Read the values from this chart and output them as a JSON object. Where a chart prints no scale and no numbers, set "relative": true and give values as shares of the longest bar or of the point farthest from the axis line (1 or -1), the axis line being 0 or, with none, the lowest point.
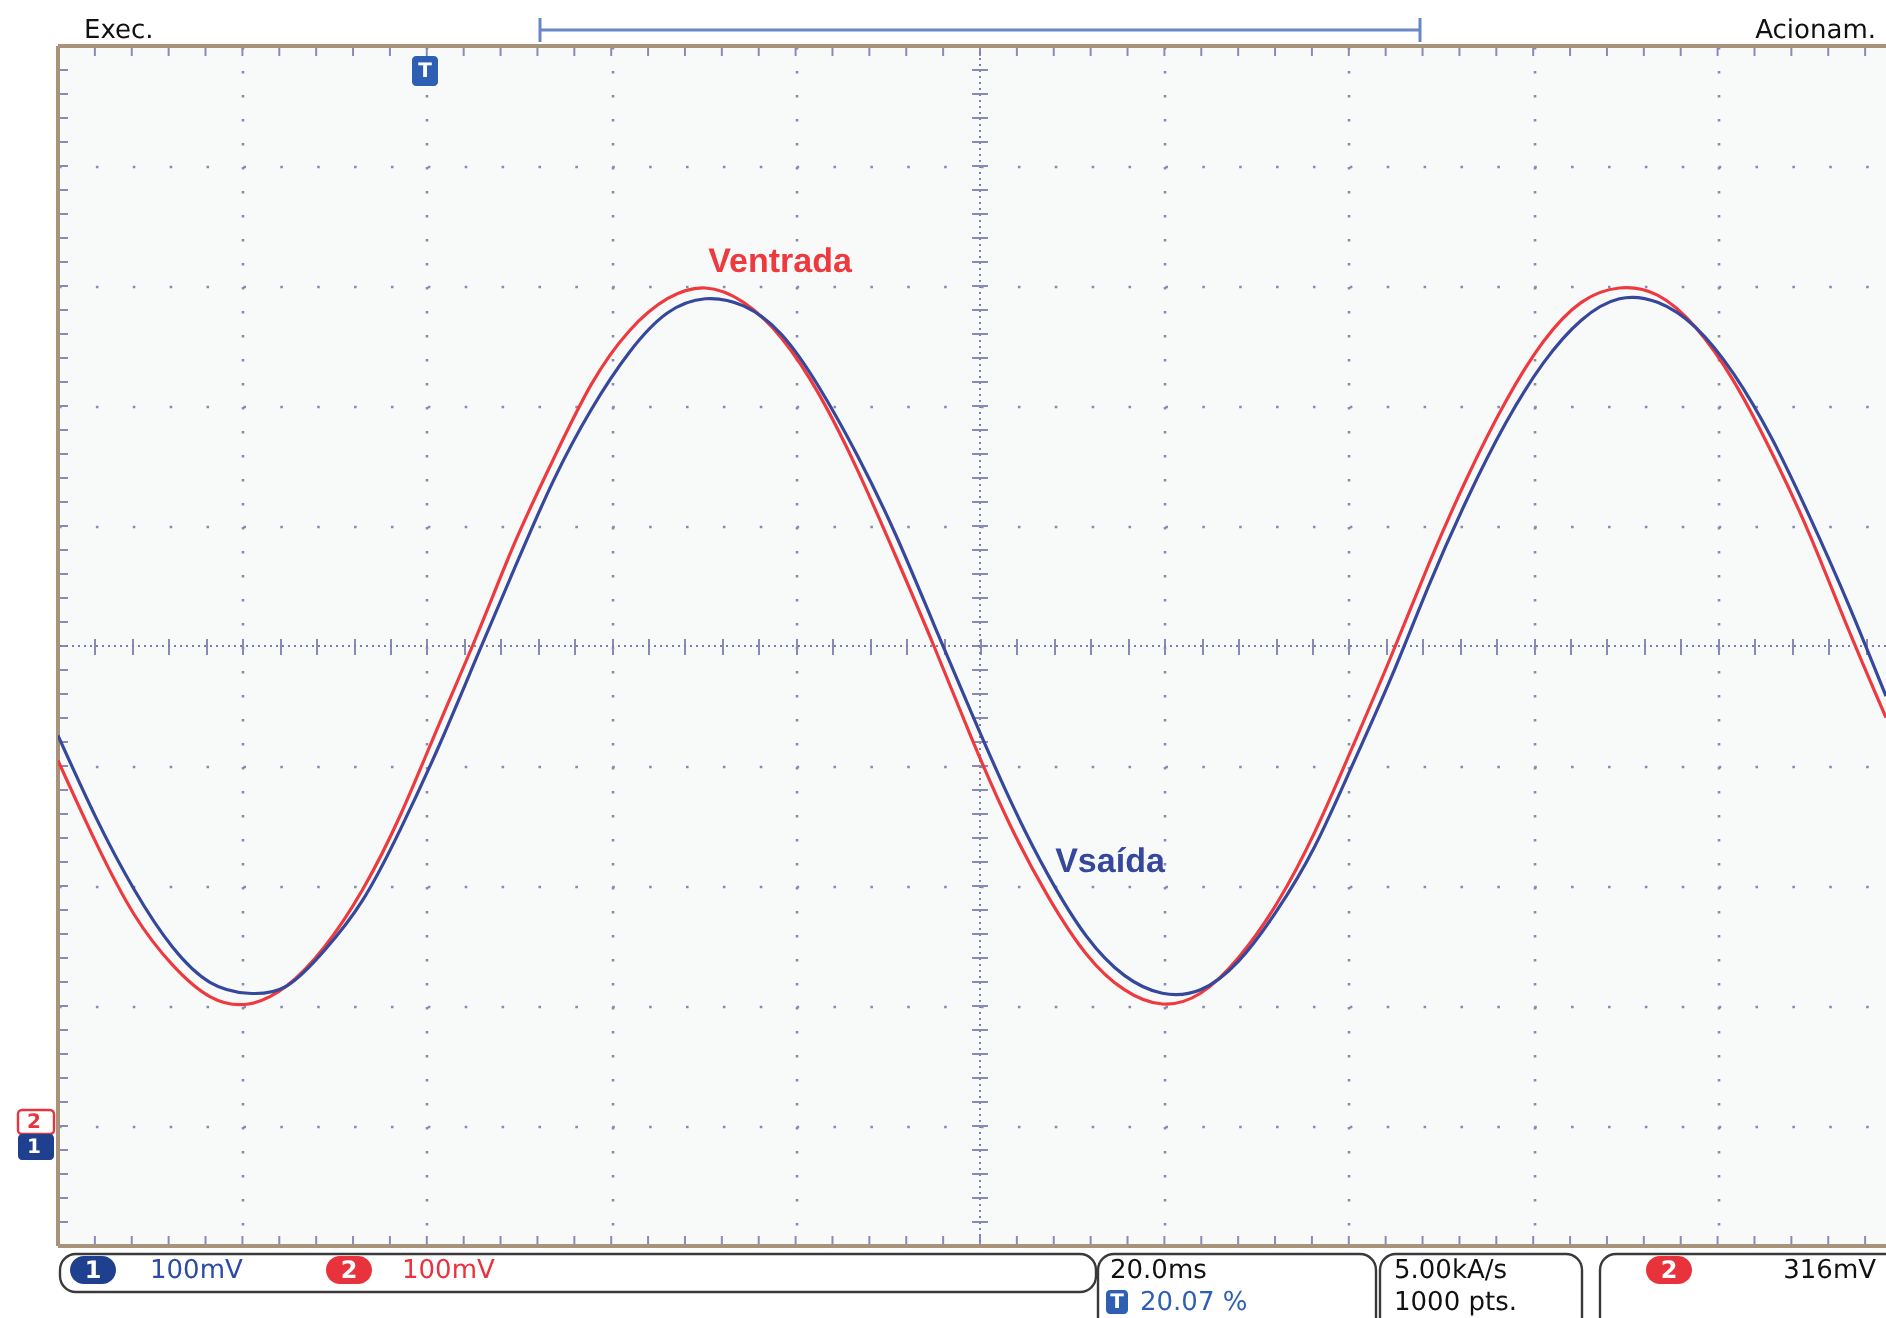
{
  "chart_data": {
    "type": "line",
    "relative": true,
    "grid": true,
    "categories": [
      null,
      null,
      null,
      null,
      null,
      null,
      null,
      null,
      null,
      null,
      null,
      null,
      null,
      null,
      null,
      null,
      null,
      null,
      null,
      null,
      null,
      null,
      null,
      null,
      null,
      null,
      null,
      null,
      null,
      null,
      null,
      null,
      null,
      null,
      null,
      null,
      null,
      null,
      null,
      null,
      null,
      null,
      null,
      null,
      null,
      null,
      null,
      null,
      null
    ],
    "series": [
      {
        "name": "Ventrada",
        "color": "#ee3a3e",
        "values": [
          -0.32,
          -0.55,
          -0.75,
          -0.89,
          -0.98,
          -1.0,
          -0.95,
          -0.84,
          -0.68,
          -0.47,
          -0.22,
          0.03,
          0.29,
          0.52,
          0.73,
          0.88,
          0.97,
          1.0,
          0.96,
          0.86,
          0.7,
          0.49,
          0.25,
          0.0,
          -0.26,
          -0.5,
          -0.7,
          -0.86,
          -0.96,
          -1.0,
          -0.97,
          -0.87,
          -0.72,
          -0.52,
          -0.28,
          -0.03,
          0.23,
          0.47,
          0.68,
          0.85,
          0.96,
          1.0,
          0.98,
          0.89,
          0.74,
          0.54,
          0.31,
          0.05,
          -0.2
        ]
      },
      {
        "name": "Vsaída",
        "color": "#36489c",
        "values": [
          -0.25,
          -0.48,
          -0.68,
          -0.84,
          -0.94,
          -0.97,
          -0.95,
          -0.85,
          -0.71,
          -0.51,
          -0.28,
          -0.03,
          0.22,
          0.46,
          0.66,
          0.82,
          0.93,
          0.97,
          0.95,
          0.87,
          0.72,
          0.53,
          0.31,
          0.06,
          -0.19,
          -0.43,
          -0.64,
          -0.81,
          -0.92,
          -0.97,
          -0.96,
          -0.88,
          -0.74,
          -0.56,
          -0.33,
          -0.09,
          0.17,
          0.41,
          0.62,
          0.79,
          0.91,
          0.97,
          0.96,
          0.89,
          0.76,
          0.58,
          0.36,
          0.12,
          -0.14
        ]
      }
    ],
    "ref_lines": [
      {
        "axis": "y",
        "value": 0,
        "color": "#7c7cae",
        "line_style": "dotted"
      }
    ],
    "annotations": [
      "Exec.",
      "Acionam.",
      "1",
      "100mV",
      "2",
      "100mV",
      "20.0ms",
      "T",
      "20.07 %",
      "5.00kA/s",
      "1000 pts.",
      "2",
      "316mV",
      "2",
      "1",
      "T"
    ]
  }
}
